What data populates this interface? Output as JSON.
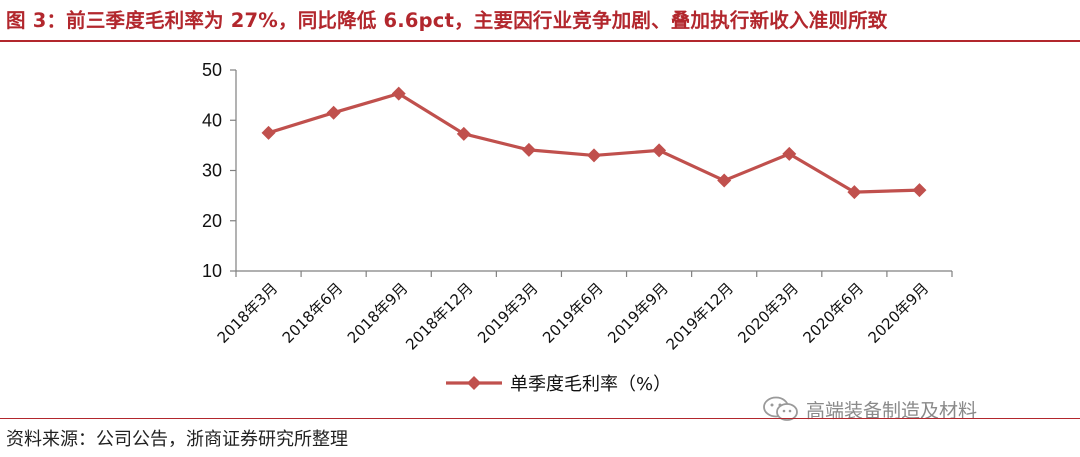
{
  "title": "图 3：前三季度毛利率为 27%，同比降低 6.6pct，主要因行业竞争加剧、叠加执行新收入准则所致",
  "source": "资料来源：公司公告，浙商证券研究所整理",
  "watermark": "高端装备制造及材料",
  "colors": {
    "accent": "#b2272d",
    "series": "#c0504d",
    "axis": "#808080"
  },
  "chart_data": {
    "type": "line",
    "categories": [
      "2018年3月",
      "2018年6月",
      "2018年9月",
      "2018年12月",
      "2019年3月",
      "2019年6月",
      "2019年9月",
      "2019年12月",
      "2020年3月",
      "2020年6月",
      "2020年9月"
    ],
    "series": [
      {
        "name": "单季度毛利率（%）",
        "values": [
          37.5,
          41.5,
          45.3,
          37.3,
          34.1,
          33.0,
          34.0,
          28.0,
          33.3,
          25.7,
          26.1
        ],
        "marker": "diamond"
      }
    ],
    "ylim": [
      10,
      50
    ],
    "yticks": [
      10,
      20,
      30,
      40,
      50
    ],
    "legend": "bottom",
    "grid": false
  }
}
